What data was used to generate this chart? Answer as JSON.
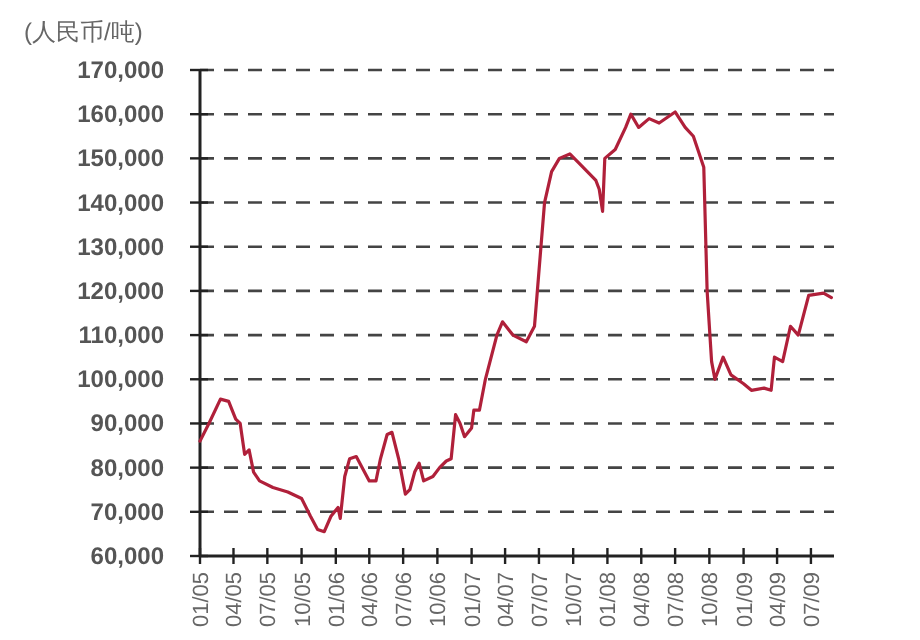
{
  "chart_data": {
    "type": "line",
    "ylabel": "(人民币/吨)",
    "x": [
      "2005-01-01",
      "2005-01-25",
      "2005-02-25",
      "2005-03-19",
      "2005-04-07",
      "2005-04-19",
      "2005-05-01",
      "2005-05-13",
      "2005-05-25",
      "2005-06-10",
      "2005-07-16",
      "2005-08-25",
      "2005-10-01",
      "2005-10-25",
      "2005-11-13",
      "2005-12-01",
      "2005-12-19",
      "2006-01-07",
      "2006-01-13",
      "2006-01-25",
      "2006-02-07",
      "2006-02-25",
      "2006-03-13",
      "2006-04-01",
      "2006-04-19",
      "2006-05-01",
      "2006-05-19",
      "2006-06-01",
      "2006-06-19",
      "2006-07-07",
      "2006-07-19",
      "2006-08-01",
      "2006-08-13",
      "2006-08-25",
      "2006-09-19",
      "2006-10-07",
      "2006-10-25",
      "2006-11-07",
      "2006-11-19",
      "2006-12-01",
      "2006-12-13",
      "2007-01-01",
      "2007-01-07",
      "2007-01-22",
      "2007-02-07",
      "2007-03-10",
      "2007-03-25",
      "2007-04-22",
      "2007-05-28",
      "2007-06-19",
      "2007-07-16",
      "2007-08-04",
      "2007-08-25",
      "2007-09-22",
      "2007-10-16",
      "2007-12-01",
      "2007-12-10",
      "2007-12-19",
      "2007-12-25",
      "2008-01-22",
      "2008-02-19",
      "2008-03-04",
      "2008-03-25",
      "2008-04-22",
      "2008-05-19",
      "2008-07-01",
      "2008-07-28",
      "2008-08-19",
      "2008-09-16",
      "2008-09-25",
      "2008-10-07",
      "2008-10-16",
      "2008-11-07",
      "2008-11-28",
      "2009-01-01",
      "2009-01-22",
      "2009-02-25",
      "2009-03-16",
      "2009-03-25",
      "2009-04-16",
      "2009-05-07",
      "2009-05-28",
      "2009-06-25",
      "2009-08-04",
      "2009-08-25"
    ],
    "series": [
      {
        "color": "#b0203a",
        "values": [
          86000,
          90000,
          95500,
          95000,
          91000,
          90000,
          83000,
          84000,
          79000,
          77000,
          75500,
          74500,
          73000,
          69000,
          66000,
          65500,
          69000,
          71000,
          68500,
          78000,
          82000,
          82500,
          80000,
          77000,
          77000,
          82000,
          87500,
          88000,
          82000,
          74000,
          75000,
          79000,
          81000,
          77000,
          78000,
          80000,
          81500,
          82000,
          92000,
          90000,
          87000,
          89000,
          93000,
          93000,
          100000,
          110000,
          113000,
          110000,
          108500,
          112000,
          140000,
          147000,
          150000,
          151000,
          149000,
          145000,
          143000,
          138000,
          150000,
          152000,
          157000,
          160000,
          157000,
          159000,
          158000,
          160500,
          157000,
          155000,
          148000,
          120000,
          104000,
          100000,
          105000,
          101000,
          99000,
          97500,
          98000,
          97500,
          105000,
          104000,
          112000,
          110000,
          119000,
          119500,
          118500
        ]
      }
    ],
    "xlim": [
      "2005-01-01",
      "2009-09-01"
    ],
    "xticks": [
      {
        "value": "2005-01",
        "label": "01/05"
      },
      {
        "value": "2005-04",
        "label": "04/05"
      },
      {
        "value": "2005-07",
        "label": "07/05"
      },
      {
        "value": "2005-10",
        "label": "10/05"
      },
      {
        "value": "2006-01",
        "label": "01/06"
      },
      {
        "value": "2006-04",
        "label": "04/06"
      },
      {
        "value": "2006-07",
        "label": "07/06"
      },
      {
        "value": "2006-10",
        "label": "10/06"
      },
      {
        "value": "2007-01",
        "label": "01/07"
      },
      {
        "value": "2007-04",
        "label": "04/07"
      },
      {
        "value": "2007-07",
        "label": "07/07"
      },
      {
        "value": "2007-10",
        "label": "10/07"
      },
      {
        "value": "2008-01",
        "label": "01/08"
      },
      {
        "value": "2008-04",
        "label": "04/08"
      },
      {
        "value": "2008-07",
        "label": "07/08"
      },
      {
        "value": "2008-10",
        "label": "10/08"
      },
      {
        "value": "2009-01",
        "label": "01/09"
      },
      {
        "value": "2009-04",
        "label": "04/09"
      },
      {
        "value": "2009-07",
        "label": "07/09"
      }
    ],
    "ylim": [
      60000,
      170000
    ],
    "yticks": [
      {
        "value": 60000,
        "label": "60,000"
      },
      {
        "value": 70000,
        "label": "70,000"
      },
      {
        "value": 80000,
        "label": "80,000"
      },
      {
        "value": 90000,
        "label": "90,000"
      },
      {
        "value": 100000,
        "label": "100,000"
      },
      {
        "value": 110000,
        "label": "110,000"
      },
      {
        "value": 120000,
        "label": "120,000"
      },
      {
        "value": 130000,
        "label": "130,000"
      },
      {
        "value": 140000,
        "label": "140,000"
      },
      {
        "value": 150000,
        "label": "150,000"
      },
      {
        "value": 160000,
        "label": "160,000"
      },
      {
        "value": 170000,
        "label": "170,000"
      }
    ],
    "grid": "y",
    "marker": "none",
    "line_style": "solid"
  }
}
